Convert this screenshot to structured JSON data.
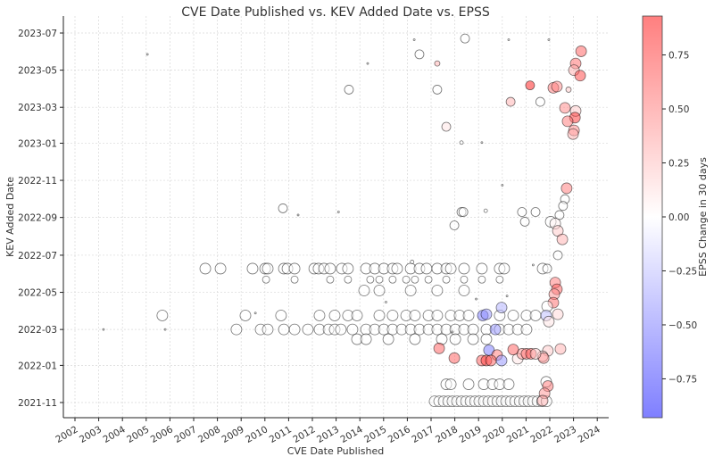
{
  "chart_data": {
    "type": "scatter",
    "title": "CVE Date Published vs. KEV Added Date vs. EPSS",
    "xlabel": "CVE Date Published",
    "ylabel": "KEV Added Date",
    "colorbar_label": "EPSS Change in 30 days",
    "xlim": [
      2001.5,
      2024.7
    ],
    "ylim": [
      "2021-10-04",
      "2023-07-29"
    ],
    "x_ticks": [
      "2002",
      "2003",
      "2004",
      "2005",
      "2006",
      "2007",
      "2008",
      "2009",
      "2010",
      "2011",
      "2012",
      "2013",
      "2014",
      "2015",
      "2016",
      "2017",
      "2018",
      "2019",
      "2020",
      "2021",
      "2022",
      "2023",
      "2024"
    ],
    "y_ticks": [
      "2021-11",
      "2022-01",
      "2022-03",
      "2022-05",
      "2022-07",
      "2022-09",
      "2022-11",
      "2023-01",
      "2023-03",
      "2023-05",
      "2023-07"
    ],
    "colorbar": {
      "range": [
        -0.93,
        0.93
      ],
      "ticks": [
        0.75,
        0.5,
        0.25,
        0.0,
        -0.25,
        -0.5,
        -0.75
      ],
      "tick_labels": [
        "0.75",
        "0.50",
        "0.25",
        "0.00",
        "−0.25",
        "−0.50",
        "−0.75"
      ],
      "colormap": "bwr",
      "low_color": "#0000ff",
      "mid_color": "#ffffff",
      "high_color": "#ff0000"
    },
    "grid": true,
    "rows": [
      {
        "kev": "2022-06-09",
        "epss": 0,
        "size": 6,
        "cve": [
          2007.49,
          2008.13,
          2009.48,
          2010.01,
          2010.12,
          2010.8,
          2010.95,
          2011.25,
          2012.08,
          2012.26,
          2012.49,
          2012.75,
          2013.24,
          2013.5,
          2014.26,
          2014.63,
          2015.01,
          2015.38,
          2015.57,
          2016.14,
          2016.51,
          2016.81,
          2017.26,
          2017.64,
          2017.83,
          2018.39,
          2019.14,
          2019.89,
          2020.08,
          2021.7
        ]
      },
      {
        "kev": "2022-03-01",
        "epss": 0,
        "size": 6,
        "cve": [
          2008.8,
          2009.82,
          2010.12,
          2010.8,
          2011.25,
          2011.81,
          2012.3,
          2012.68,
          2012.94,
          2013.2,
          2013.69,
          2014.26,
          2014.63,
          2015.01,
          2015.38,
          2015.76,
          2016.14,
          2016.51,
          2016.89,
          2017.26,
          2017.64,
          2018.02,
          2018.39,
          2018.77,
          2019.33,
          2019.89,
          2020.27,
          2020.65,
          2021.02
        ]
      },
      {
        "kev": "2022-03-24",
        "epss": 0,
        "size": 6,
        "cve": [
          2005.68,
          2009.18,
          2010.68,
          2012.3,
          2012.94,
          2013.5,
          2013.88,
          2014.82,
          2015.38,
          2015.95,
          2016.32,
          2016.89,
          2017.26,
          2017.83,
          2018.2,
          2018.58,
          2019.89,
          2020.46,
          2021.02,
          2021.4
        ]
      },
      {
        "kev": "2022-05-22",
        "epss": 0,
        "size": 4,
        "cve": [
          2010.05,
          2011.25,
          2012.75,
          2013.5,
          2014.44,
          2014.82,
          2015.38,
          2015.95,
          2016.32,
          2016.89,
          2017.64,
          2018.39,
          2019.14,
          2019.89
        ]
      },
      {
        "kev": "2021-11-03",
        "epss": 0,
        "size": 6,
        "cve": [
          2017.15,
          2017.34,
          2017.53,
          2017.72,
          2017.9,
          2018.09,
          2018.28,
          2018.47,
          2018.66,
          2018.85,
          2019.03,
          2019.22,
          2019.41,
          2019.6,
          2019.79,
          2019.97,
          2020.16,
          2020.35,
          2020.54,
          2020.73,
          2020.92,
          2021.1,
          2021.29,
          2021.48,
          2021.67,
          2021.86
        ]
      },
      {
        "kev": "2022-02-13",
        "epss": 0,
        "size": 6,
        "cve": [
          2013.88,
          2014.26,
          2015.2,
          2016.32,
          2017.45,
          2018.02,
          2018.77,
          2019.33
        ]
      },
      {
        "kev": "2021-12-01",
        "epss": 0,
        "size": 6,
        "cve": [
          2017.64,
          2017.83,
          2018.58,
          2019.22,
          2019.59,
          2019.89,
          2020.27
        ]
      },
      {
        "kev": "2022-05-04",
        "epss": 0,
        "size": 6,
        "cve": [
          2014.18,
          2014.82,
          2016.14,
          2017.26,
          2018.39
        ]
      }
    ],
    "points": [
      [
        2023.32,
        "2023-06-01",
        0.6,
        6
      ],
      [
        2023.09,
        "2023-05-12",
        0.55,
        6
      ],
      [
        2023.02,
        "2023-05-01",
        0.3,
        6
      ],
      [
        2023.28,
        "2023-04-22",
        0.7,
        6
      ],
      [
        2021.17,
        "2023-04-06",
        0.85,
        5
      ],
      [
        2022.15,
        "2023-04-02",
        0.5,
        6
      ],
      [
        2022.3,
        "2023-04-04",
        0.45,
        6
      ],
      [
        2022.79,
        "2023-03-30",
        0.2,
        3
      ],
      [
        2020.35,
        "2023-03-10",
        0.3,
        5
      ],
      [
        2021.6,
        "2023-03-10",
        0,
        5
      ],
      [
        2022.64,
        "2023-02-28",
        0.45,
        6
      ],
      [
        2023.09,
        "2023-02-23",
        0.2,
        6
      ],
      [
        2023.06,
        "2023-02-12",
        0.75,
        6
      ],
      [
        2022.75,
        "2023-02-06",
        0.5,
        6
      ],
      [
        2023.02,
        "2023-01-22",
        0.45,
        6
      ],
      [
        2022.98,
        "2023-01-16",
        0.3,
        6
      ],
      [
        2017.64,
        "2023-01-28",
        0.1,
        5
      ],
      [
        2017.26,
        "2023-03-30",
        0,
        5
      ],
      [
        2018.43,
        "2023-06-22",
        0,
        5
      ],
      [
        2017.26,
        "2023-05-12",
        0.3,
        3
      ],
      [
        2016.51,
        "2023-05-27",
        0,
        5
      ],
      [
        2013.54,
        "2023-03-30",
        0,
        5
      ],
      [
        2010.76,
        "2022-09-16",
        0,
        5
      ],
      [
        2018.28,
        "2022-09-10",
        0,
        5
      ],
      [
        2018.36,
        "2022-09-10",
        0,
        5
      ],
      [
        2022.71,
        "2022-10-19",
        0.5,
        6
      ],
      [
        2022.64,
        "2022-10-01",
        0,
        5
      ],
      [
        2022.56,
        "2022-09-20",
        0,
        5
      ],
      [
        2022.41,
        "2022-09-05",
        0,
        5
      ],
      [
        2020.83,
        "2022-09-10",
        0,
        5
      ],
      [
        2020.95,
        "2022-08-25",
        0,
        5
      ],
      [
        2022.04,
        "2022-08-25",
        0,
        6
      ],
      [
        2022.23,
        "2022-08-22",
        0.05,
        6
      ],
      [
        2022.34,
        "2022-08-10",
        0.2,
        6
      ],
      [
        2022.53,
        "2022-07-27",
        0.3,
        6
      ],
      [
        2017.98,
        "2022-08-19",
        0,
        5
      ],
      [
        2021.4,
        "2022-09-10",
        0,
        5
      ],
      [
        2022.34,
        "2022-07-01",
        0,
        5
      ],
      [
        2021.89,
        "2022-06-09",
        0,
        5
      ],
      [
        2022.23,
        "2022-05-17",
        0.5,
        6
      ],
      [
        2022.3,
        "2022-05-06",
        0.6,
        6
      ],
      [
        2022.19,
        "2022-04-28",
        0.4,
        6
      ],
      [
        2022.15,
        "2022-04-14",
        0.55,
        6
      ],
      [
        2021.89,
        "2022-04-08",
        0,
        6
      ],
      [
        2021.85,
        "2022-03-24",
        -0.25,
        6
      ],
      [
        2022.34,
        "2022-03-26",
        0.15,
        6
      ],
      [
        2021.96,
        "2022-03-14",
        0.1,
        6
      ],
      [
        2022.45,
        "2022-01-28",
        0.3,
        6
      ],
      [
        2021.92,
        "2022-01-25",
        0.2,
        6
      ],
      [
        2021.7,
        "2022-01-16",
        0.15,
        6
      ],
      [
        2021.74,
        "2022-01-13",
        0.4,
        6
      ],
      [
        2021.85,
        "2021-12-05",
        0,
        6
      ],
      [
        2021.92,
        "2021-11-28",
        0.5,
        6
      ],
      [
        2021.78,
        "2021-11-16",
        0.4,
        6
      ],
      [
        2021.7,
        "2021-11-04",
        0.3,
        6
      ],
      [
        2019.44,
        "2022-01-26",
        -0.5,
        6
      ],
      [
        2019.78,
        "2022-01-18",
        0.5,
        6
      ],
      [
        2019.14,
        "2022-01-09",
        0.6,
        6
      ],
      [
        2019.33,
        "2022-01-09",
        0.7,
        6
      ],
      [
        2019.52,
        "2022-01-09",
        0.6,
        6
      ],
      [
        2019.97,
        "2022-01-09",
        -0.4,
        6
      ],
      [
        2020.65,
        "2022-01-12",
        0.1,
        6
      ],
      [
        2020.84,
        "2022-01-20",
        0.4,
        6
      ],
      [
        2021.02,
        "2022-01-20",
        0.5,
        6
      ],
      [
        2021.21,
        "2022-01-20",
        0.6,
        6
      ],
      [
        2021.4,
        "2022-01-20",
        0.2,
        6
      ],
      [
        2020.46,
        "2022-01-27",
        0.6,
        6
      ],
      [
        2017.34,
        "2022-01-29",
        0.6,
        6
      ],
      [
        2017.98,
        "2022-01-13",
        0.6,
        6
      ],
      [
        2019.18,
        "2022-03-24",
        -0.5,
        6
      ],
      [
        2019.33,
        "2022-03-26",
        -0.4,
        6
      ],
      [
        2019.71,
        "2022-03-01",
        -0.4,
        6
      ],
      [
        2019.97,
        "2022-04-06",
        -0.3,
        6
      ],
      [
        2005.05,
        "2023-05-27",
        0,
        1
      ],
      [
        2014.33,
        "2023-05-12",
        0,
        1
      ],
      [
        2016.29,
        "2023-06-20",
        0,
        1
      ],
      [
        2020.27,
        "2023-06-20",
        0,
        1
      ],
      [
        2021.96,
        "2023-06-20",
        0,
        1
      ],
      [
        2018.28,
        "2023-01-02",
        0,
        2
      ],
      [
        2019.14,
        "2023-01-02",
        0,
        1
      ],
      [
        2020.0,
        "2022-10-24",
        0,
        1
      ],
      [
        2011.4,
        "2022-09-05",
        0,
        1
      ],
      [
        2013.1,
        "2022-09-10",
        0,
        1
      ],
      [
        2019.3,
        "2022-09-12",
        0,
        2
      ],
      [
        2009.6,
        "2022-03-28",
        0,
        1
      ],
      [
        2003.2,
        "2022-03-01",
        0,
        1
      ],
      [
        2005.8,
        "2022-03-01",
        0,
        1
      ],
      [
        2016.2,
        "2022-06-20",
        0,
        2
      ],
      [
        2018.9,
        "2022-04-20",
        0,
        1
      ],
      [
        2020.2,
        "2022-04-25",
        0,
        1
      ],
      [
        2021.3,
        "2022-06-15",
        0,
        1
      ],
      [
        2015.1,
        "2022-04-15",
        0,
        1
      ],
      [
        2017.9,
        "2022-02-25",
        0,
        1
      ]
    ]
  }
}
